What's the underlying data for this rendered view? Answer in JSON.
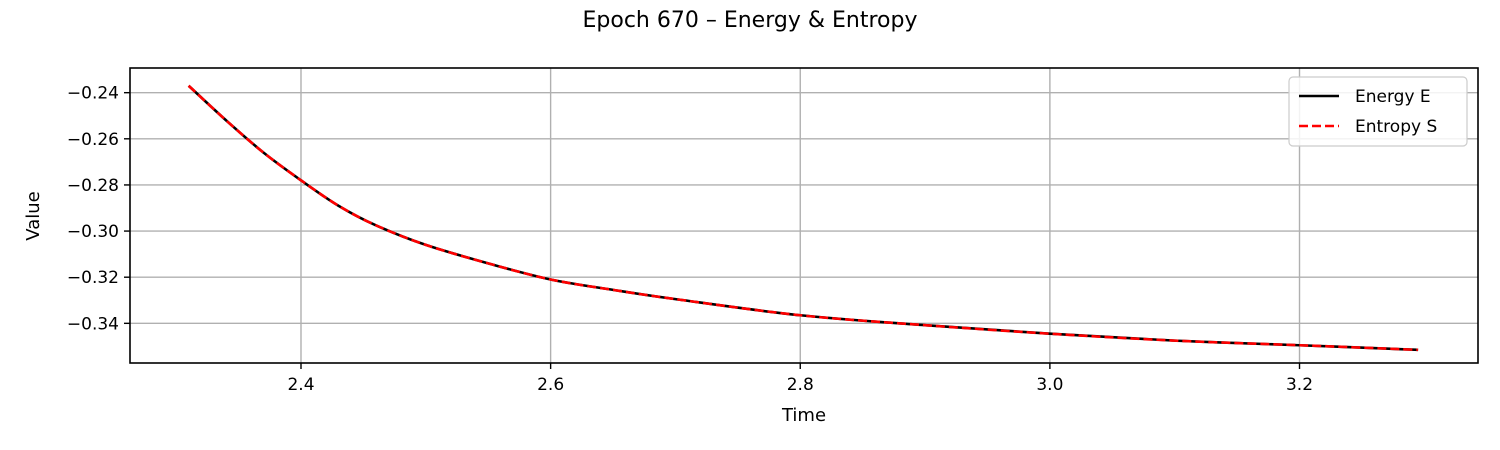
{
  "chart_data": {
    "type": "line",
    "title": "Epoch 670 – Energy & Entropy",
    "xlabel": "Time",
    "ylabel": "Value",
    "xlim": [
      2.263,
      3.343
    ],
    "ylim": [
      -0.3572,
      -0.2293
    ],
    "xticks": [
      2.4,
      2.6,
      2.8,
      3.0,
      3.2
    ],
    "xtick_labels": [
      "2.4",
      "2.6",
      "2.8",
      "3.0",
      "3.2"
    ],
    "yticks": [
      -0.24,
      -0.26,
      -0.28,
      -0.3,
      -0.32,
      -0.34
    ],
    "ytick_labels": [
      "−0.24",
      "−0.26",
      "−0.28",
      "−0.30",
      "−0.32",
      "−0.34"
    ],
    "grid": true,
    "legend": {
      "placement": "top-right"
    },
    "series": [
      {
        "name": "Energy E",
        "color": "#000000",
        "style": "solid",
        "x": [
          2.31,
          2.34,
          2.37,
          2.4,
          2.43,
          2.46,
          2.5,
          2.55,
          2.6,
          2.65,
          2.7,
          2.8,
          2.9,
          3.0,
          3.1,
          3.2,
          3.295
        ],
        "y": [
          -0.237,
          -0.252,
          -0.266,
          -0.278,
          -0.289,
          -0.2975,
          -0.306,
          -0.314,
          -0.321,
          -0.3255,
          -0.3295,
          -0.3365,
          -0.3408,
          -0.3445,
          -0.3475,
          -0.3495,
          -0.3515
        ]
      },
      {
        "name": "Entropy S",
        "color": "#ff0000",
        "style": "dashed",
        "x": [
          2.31,
          2.34,
          2.37,
          2.4,
          2.43,
          2.46,
          2.5,
          2.55,
          2.6,
          2.65,
          2.7,
          2.8,
          2.9,
          3.0,
          3.1,
          3.2,
          3.295
        ],
        "y": [
          -0.237,
          -0.252,
          -0.266,
          -0.278,
          -0.289,
          -0.2975,
          -0.306,
          -0.314,
          -0.321,
          -0.3255,
          -0.3295,
          -0.3365,
          -0.3408,
          -0.3445,
          -0.3475,
          -0.3495,
          -0.3515
        ]
      }
    ]
  }
}
